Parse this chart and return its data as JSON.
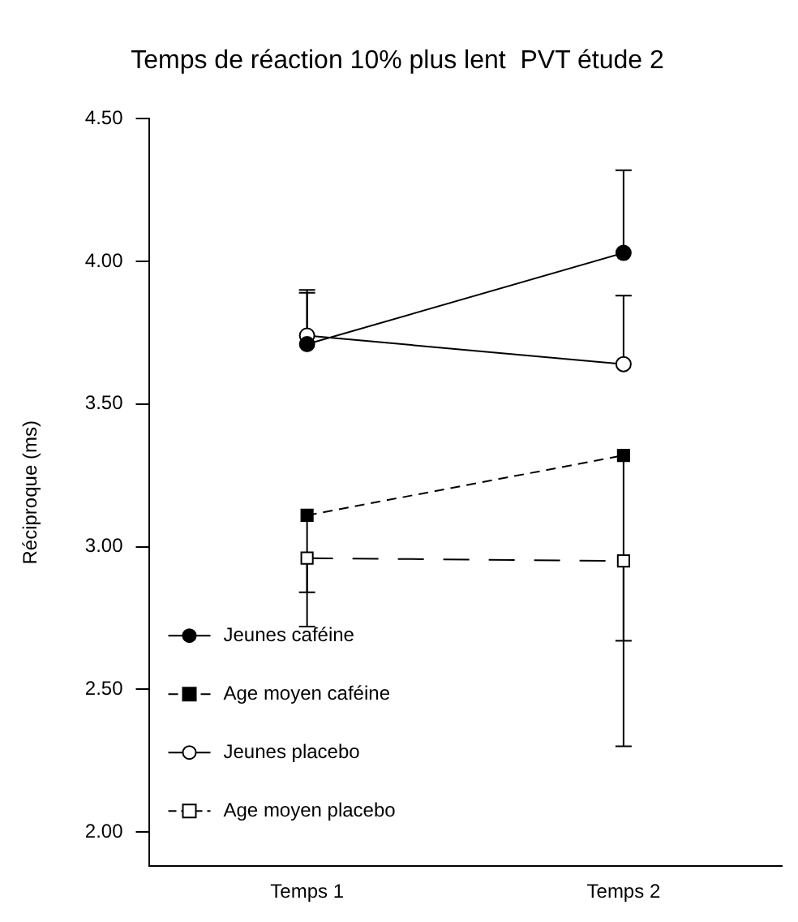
{
  "chart_data": {
    "type": "line",
    "title": "Temps de réaction 10% plus lent  PVT étude 2",
    "ylabel": "Réciproque (ms)",
    "categories": [
      "Temps 1",
      "Temps 2"
    ],
    "series": [
      {
        "name": "Jeunes caféine",
        "color": "#000000",
        "marker": "circle",
        "colors": [
          "#000000",
          "#000000"
        ],
        "line_style": "solid",
        "values": [
          3.71,
          4.03
        ],
        "errors": [
          [
            3.71,
            3.89
          ],
          [
            4.03,
            4.32
          ]
        ]
      },
      {
        "name": "Age moyen caféine",
        "color": "#000000",
        "marker": "square",
        "colors": [
          "#000000",
          "#000000"
        ],
        "line_style": "dashed",
        "values": [
          3.11,
          3.32
        ],
        "errors": [
          [
            2.72,
            3.11
          ],
          [
            2.3,
            3.32
          ]
        ]
      },
      {
        "name": "Jeunes placebo",
        "color": "#000000",
        "marker": "circle",
        "colors": [
          "#ffffff",
          "#ffffff"
        ],
        "line_style": "solid",
        "values": [
          3.74,
          3.64
        ],
        "errors": [
          [
            3.74,
            3.9
          ],
          [
            3.64,
            3.88
          ]
        ]
      },
      {
        "name": "Age moyen placebo",
        "color": "#000000",
        "marker": "square",
        "colors": [
          "#ffffff",
          "#ffffff"
        ],
        "line_style": "longdash",
        "values": [
          2.96,
          2.95
        ],
        "errors": [
          [
            2.84,
            2.96
          ],
          [
            2.67,
            2.95
          ]
        ]
      }
    ],
    "ylim": [
      1.88,
      4.5
    ],
    "yticks": [
      {
        "value": 2,
        "label": "2.00"
      },
      {
        "value": 2.5,
        "label": "2.50"
      },
      {
        "value": 3,
        "label": "3.00"
      },
      {
        "value": 3.5,
        "label": "3.50"
      },
      {
        "value": 4,
        "label": "4.00"
      },
      {
        "value": 4.5,
        "label": "4.50"
      }
    ],
    "grid": false,
    "legend": "bottom left"
  }
}
